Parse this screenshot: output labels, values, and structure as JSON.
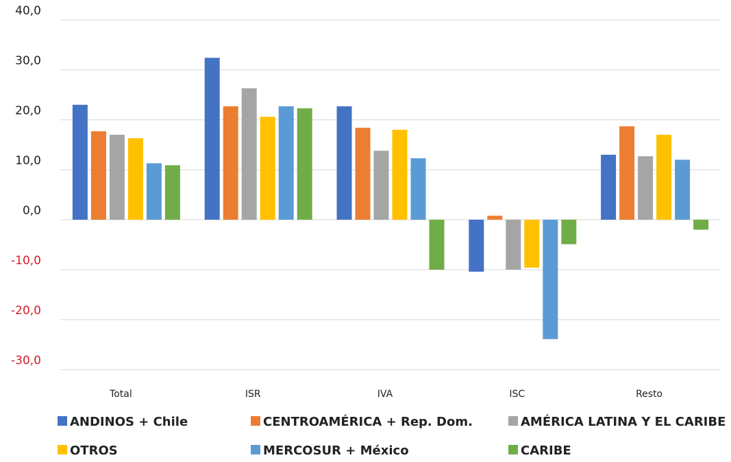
{
  "chart_data": {
    "type": "bar",
    "categories": [
      "Total",
      "ISR",
      "IVA",
      "ISC",
      "Resto"
    ],
    "series": [
      {
        "name": "ANDINOS + Chile",
        "color": "#4472c4",
        "values": [
          23.0,
          32.4,
          22.7,
          -10.4,
          13.0
        ]
      },
      {
        "name": "CENTROAMÉRICA + Rep. Dom.",
        "color": "#ed7d31",
        "values": [
          17.7,
          22.7,
          18.4,
          0.8,
          18.7
        ]
      },
      {
        "name": "AMÉRICA LATINA Y EL CARIBE",
        "color": "#a5a5a5",
        "values": [
          17.0,
          26.3,
          13.8,
          -10.0,
          12.7
        ]
      },
      {
        "name": "OTROS",
        "color": "#ffc000",
        "values": [
          16.3,
          20.6,
          18.0,
          -9.6,
          17.0
        ]
      },
      {
        "name": "MERCOSUR + México",
        "color": "#5b9bd5",
        "values": [
          11.3,
          22.7,
          12.3,
          -23.9,
          12.0
        ]
      },
      {
        "name": "CARIBE",
        "color": "#70ad47",
        "values": [
          10.9,
          22.3,
          -10.0,
          -4.9,
          -2.0
        ]
      }
    ],
    "yticks": [
      "40,0",
      "30,0",
      "20,0",
      "10,0",
      "0,0",
      "-10,0",
      "-20,0",
      "-30,0"
    ],
    "ytick_values": [
      40,
      30,
      20,
      10,
      0,
      -10,
      -20,
      -30
    ],
    "ylim": [
      -30,
      40
    ],
    "negative_tick_color": "#d0202a",
    "grid": true,
    "legend_position": "bottom"
  }
}
